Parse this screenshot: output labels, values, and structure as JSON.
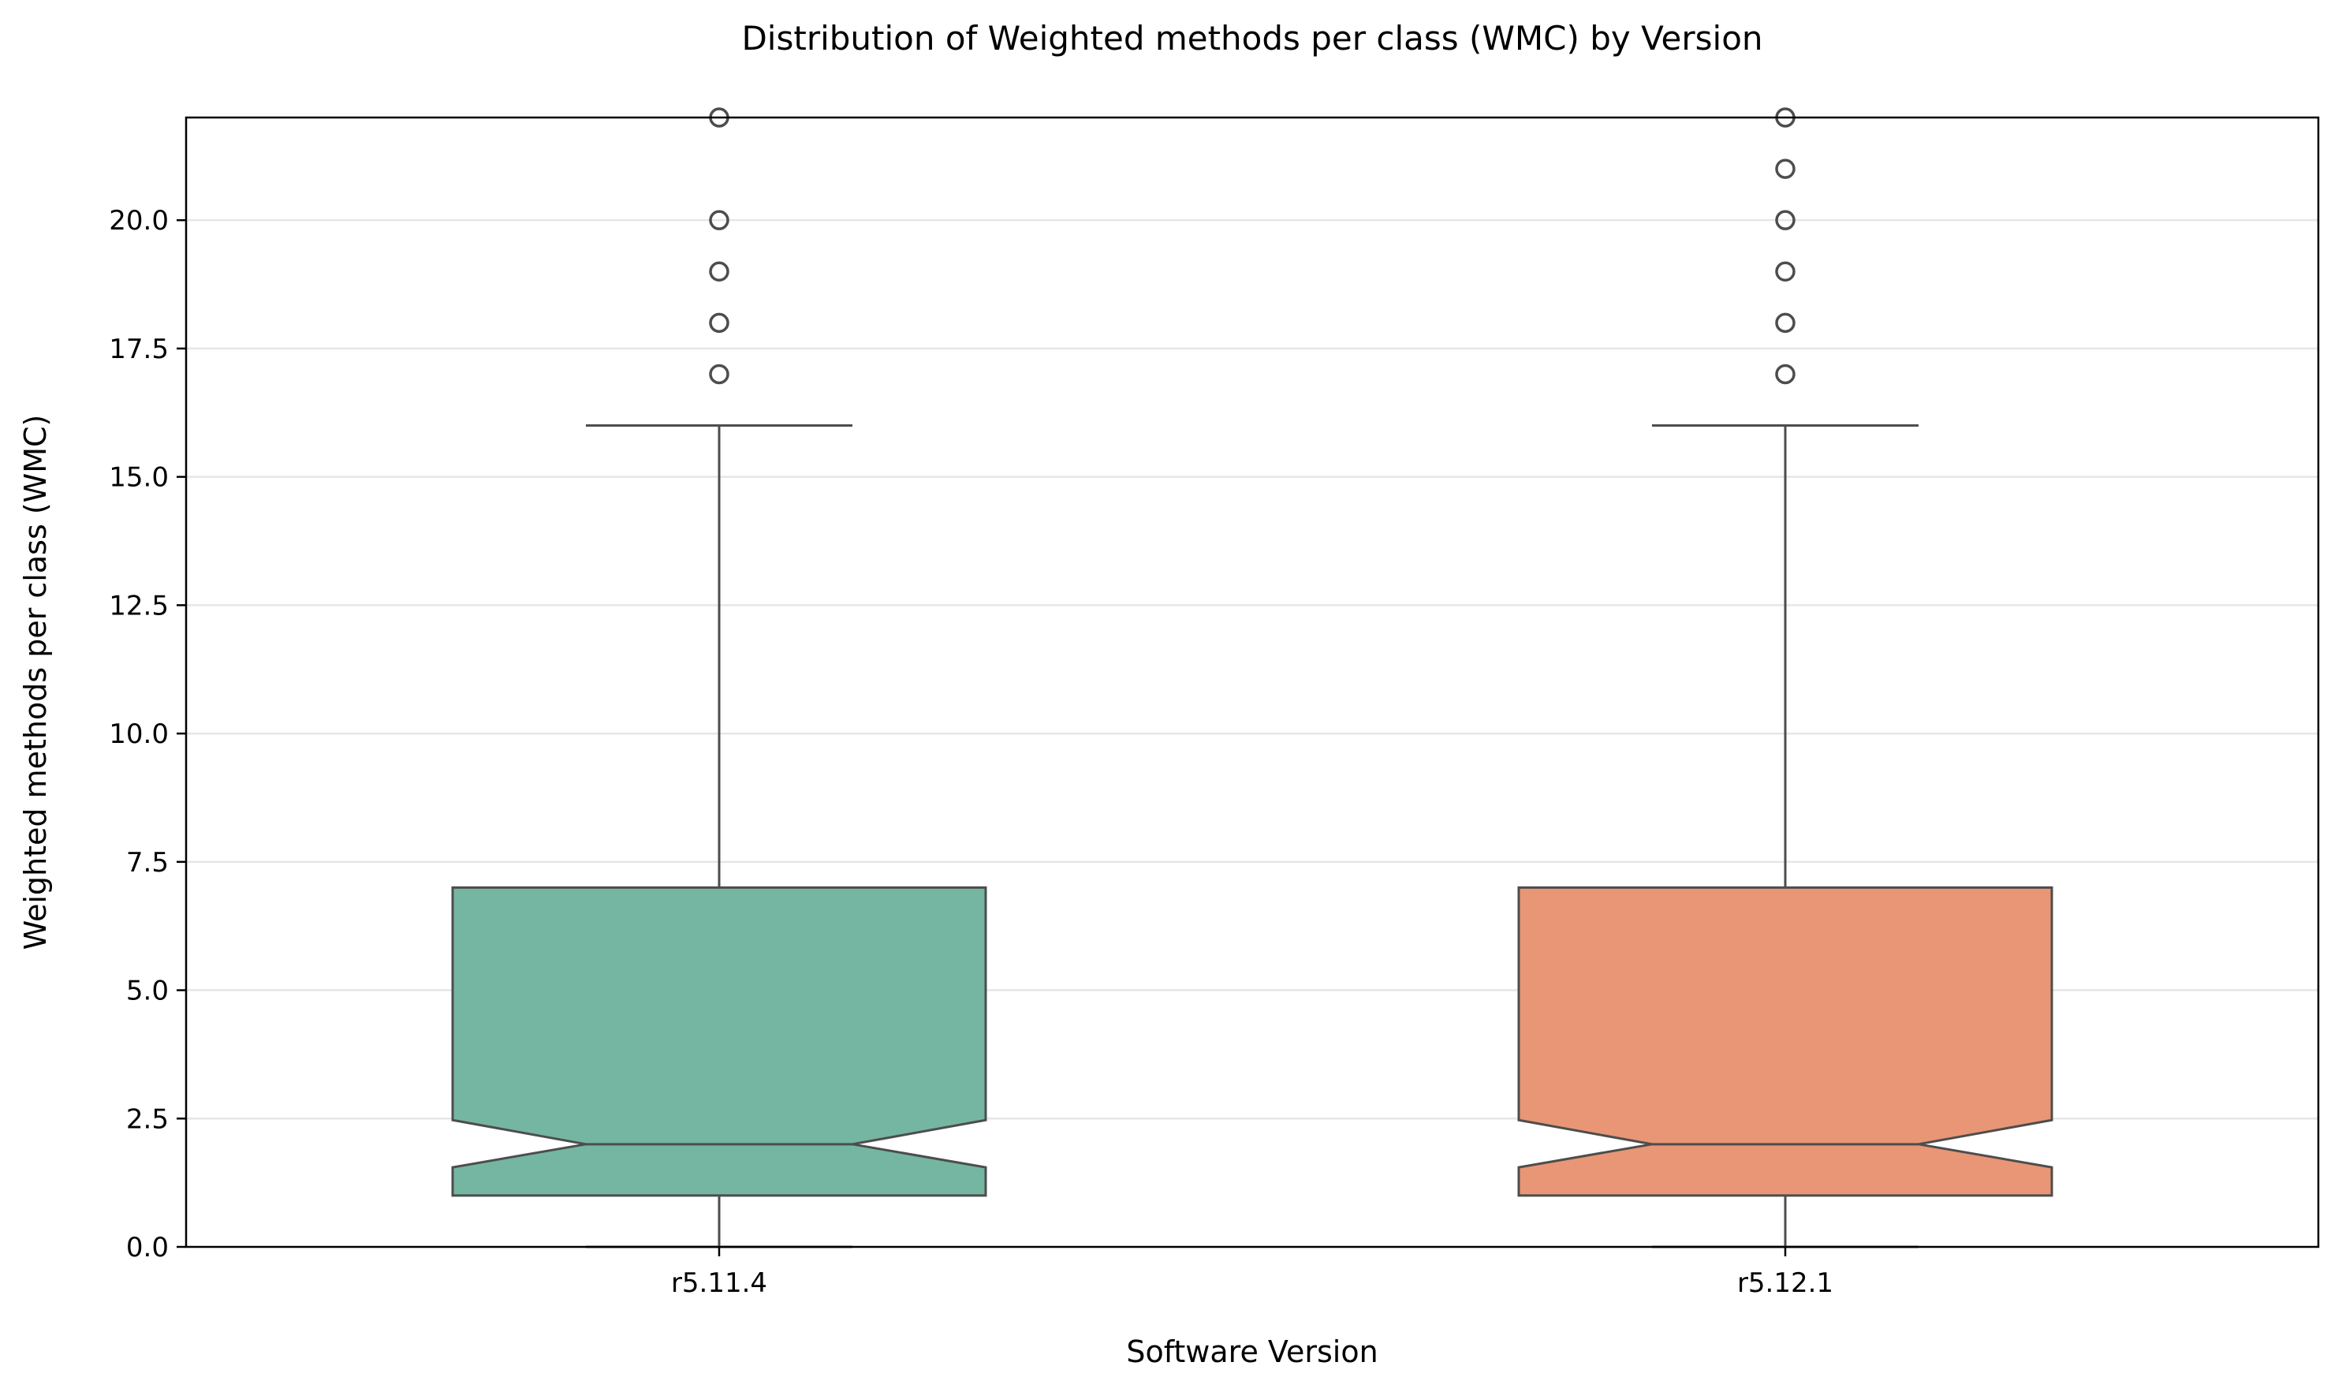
{
  "chart_data": {
    "type": "box",
    "title": "Distribution of Weighted methods per class (WMC) by Version",
    "xlabel": "Software Version",
    "ylabel": "Weighted methods per class (WMC)",
    "ylim": [
      0,
      22
    ],
    "yticks": [
      "0.0",
      "2.5",
      "5.0",
      "7.5",
      "10.0",
      "12.5",
      "15.0",
      "17.5",
      "20.0"
    ],
    "grid": "horizontal",
    "notched": true,
    "categories": [
      "r5.11.4",
      "r5.12.1"
    ],
    "boxes": [
      {
        "name": "r5.11.4",
        "color": "#74b6a1",
        "whisker_low": 0,
        "q1": 1,
        "median": 2,
        "q3": 7,
        "whisker_high": 16,
        "notch_low": 1.55,
        "notch_high": 2.47,
        "outliers": [
          17,
          18,
          19,
          20,
          22
        ]
      },
      {
        "name": "r5.12.1",
        "color": "#e89675",
        "whisker_low": 0,
        "q1": 1,
        "median": 2,
        "q3": 7,
        "whisker_high": 16,
        "notch_low": 1.55,
        "notch_high": 2.47,
        "outliers": [
          17,
          18,
          19,
          20,
          21,
          22
        ]
      }
    ]
  }
}
